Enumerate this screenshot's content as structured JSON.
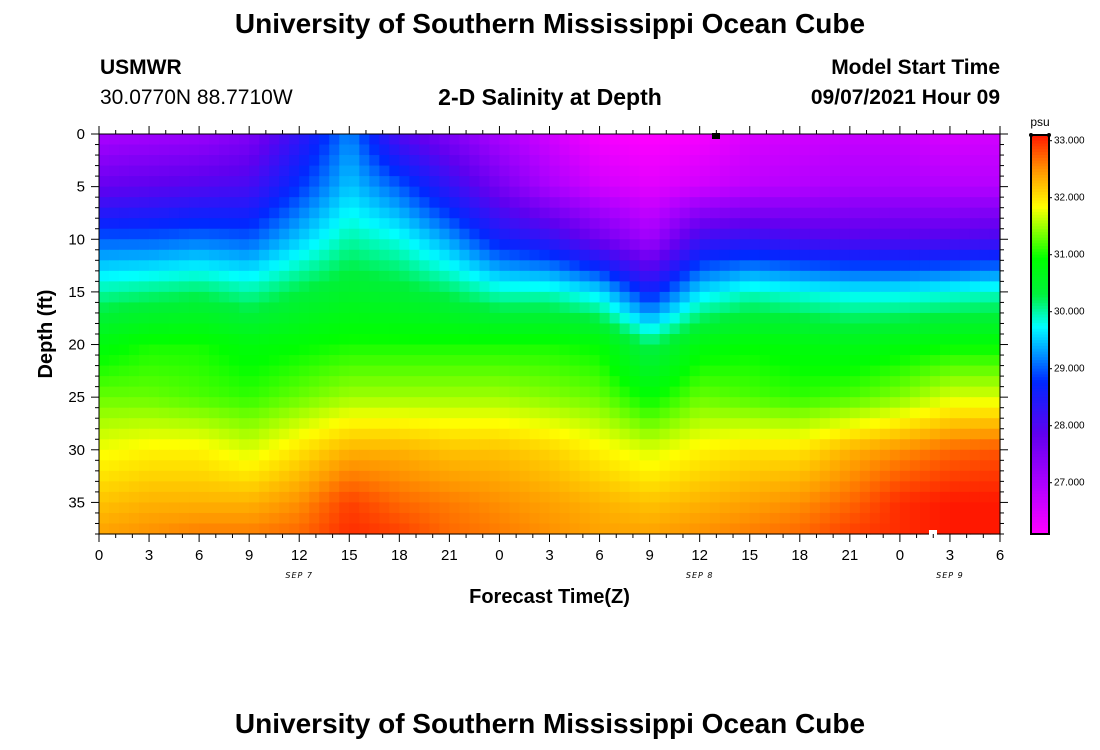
{
  "page": {
    "top_title": "University of Southern Mississippi Ocean Cube",
    "bottom_title": "University of Southern Mississippi Ocean Cube",
    "station": "USMWR",
    "coords": "30.0770N  88.7710W",
    "chart_title": "2-D Salinity at Depth",
    "model_label": "Model Start Time",
    "model_time": "09/07/2021 Hour 09"
  },
  "chart_data": {
    "type": "heatmap",
    "title": "2-D Salinity at Depth",
    "xlabel": "Forecast Time(Z)",
    "ylabel": "Depth (ft)",
    "x_ticks": [
      "0",
      "3",
      "6",
      "9",
      "12",
      "15",
      "18",
      "21",
      "0",
      "3",
      "6",
      "9",
      "12",
      "15",
      "18",
      "21",
      "0",
      "3",
      "6"
    ],
    "x_range_hours": [
      0,
      54
    ],
    "date_labels": [
      {
        "text": "SEP 7",
        "hour": 12
      },
      {
        "text": "SEP 8",
        "hour": 36
      },
      {
        "text": "SEP 9",
        "hour": 51
      }
    ],
    "y_ticks": [
      0,
      5,
      10,
      15,
      20,
      25,
      30,
      35
    ],
    "ylim": [
      0,
      38
    ],
    "colorbar": {
      "unit": "psu",
      "range": [
        26.1,
        33.1
      ],
      "ticks": [
        "33.000",
        "32.000",
        "31.000",
        "30.000",
        "29.000",
        "28.000",
        "27.000"
      ],
      "tick_values": [
        33,
        32,
        31,
        30,
        29,
        28,
        27
      ]
    },
    "hours": [
      0,
      3,
      6,
      9,
      12,
      15,
      18,
      21,
      24,
      27,
      30,
      33,
      36,
      39,
      42,
      45,
      48,
      51,
      54
    ],
    "depths": [
      0,
      5,
      10,
      15,
      20,
      25,
      30,
      35,
      38
    ],
    "values": [
      [
        27.0,
        27.1,
        27.2,
        27.5,
        28.3,
        29.2,
        28.0,
        27.5,
        27.0,
        26.6,
        26.2,
        26.1,
        26.2,
        26.5,
        26.6,
        26.7,
        26.7,
        26.5,
        26.6
      ],
      [
        27.8,
        27.9,
        28.0,
        28.1,
        28.8,
        29.5,
        29.0,
        28.3,
        27.6,
        27.0,
        26.6,
        26.4,
        26.6,
        26.8,
        26.9,
        27.0,
        27.0,
        26.9,
        26.9
      ],
      [
        29.0,
        29.0,
        29.1,
        29.0,
        29.5,
        30.0,
        29.8,
        29.3,
        28.6,
        28.3,
        27.7,
        27.1,
        28.2,
        28.3,
        28.1,
        28.0,
        28.0,
        28.0,
        28.1
      ],
      [
        30.0,
        30.1,
        30.2,
        30.0,
        30.3,
        30.5,
        30.4,
        30.2,
        29.9,
        29.9,
        29.6,
        28.6,
        29.6,
        29.9,
        29.8,
        29.7,
        29.7,
        29.8,
        29.9
      ],
      [
        30.8,
        31.0,
        31.0,
        30.8,
        30.9,
        31.0,
        31.0,
        31.0,
        31.0,
        31.0,
        30.9,
        30.2,
        30.8,
        30.9,
        30.8,
        30.7,
        30.8,
        30.9,
        30.9
      ],
      [
        31.3,
        31.3,
        31.2,
        31.1,
        31.3,
        31.5,
        31.5,
        31.5,
        31.5,
        31.4,
        31.3,
        30.9,
        31.3,
        31.2,
        31.1,
        31.2,
        31.4,
        31.7,
        31.7
      ],
      [
        31.8,
        31.9,
        31.9,
        31.7,
        32.0,
        32.3,
        32.3,
        32.2,
        32.2,
        32.1,
        31.9,
        31.7,
        31.9,
        32.0,
        32.0,
        32.3,
        32.5,
        32.7,
        32.8
      ],
      [
        32.2,
        32.3,
        32.3,
        32.3,
        32.5,
        32.9,
        32.7,
        32.6,
        32.5,
        32.4,
        32.3,
        32.2,
        32.3,
        32.4,
        32.5,
        32.7,
        33.0,
        33.1,
        33.1
      ],
      [
        32.4,
        32.5,
        32.6,
        32.6,
        32.7,
        33.0,
        32.9,
        32.7,
        32.6,
        32.5,
        32.4,
        32.4,
        32.5,
        32.6,
        32.7,
        32.9,
        33.0,
        33.1,
        33.1
      ]
    ]
  }
}
